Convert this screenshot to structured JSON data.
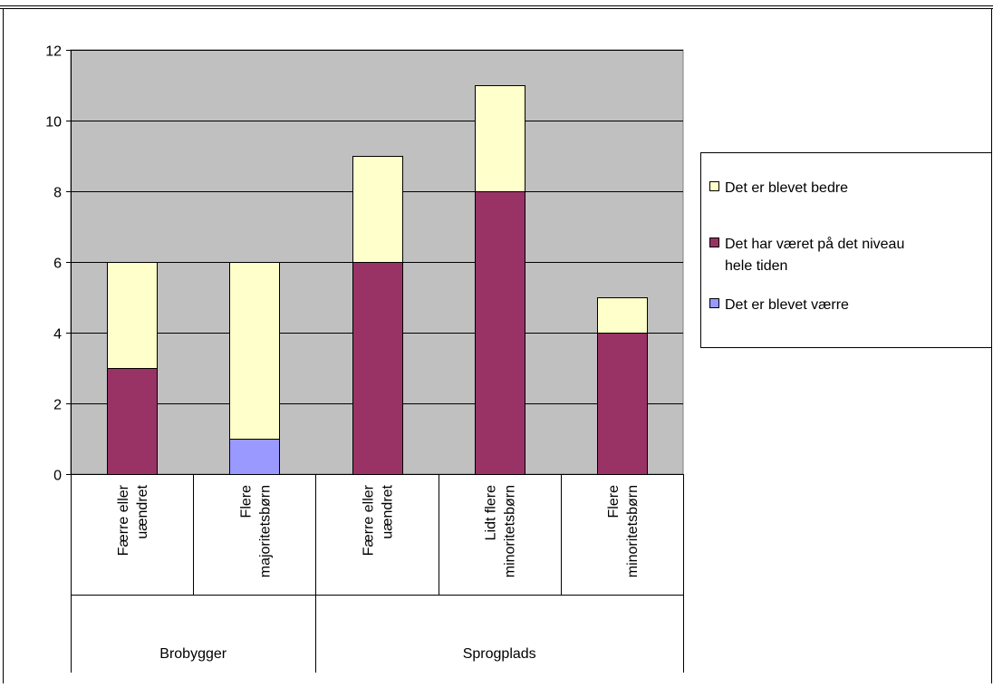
{
  "chart_data": {
    "type": "bar",
    "stacked": true,
    "groups": [
      {
        "label": "Brobygger",
        "categories": [
          [
            "Færre eller",
            "uændret"
          ],
          [
            "Flere",
            "majoritetsbørn"
          ]
        ]
      },
      {
        "label": "Sprogplads",
        "categories": [
          [
            "Færre eller",
            "uændret"
          ],
          [
            "Lidt flere",
            "minoritetsbørn"
          ],
          [
            "Flere",
            "minoritetsbørn"
          ]
        ]
      }
    ],
    "series": [
      {
        "name": "Det er blevet værre",
        "color": "#9999ff",
        "values": [
          0,
          1,
          0,
          0,
          0
        ]
      },
      {
        "name": "Det har været på det niveau hele tiden",
        "name_lines": [
          "Det har været på det niveau",
          "hele tiden"
        ],
        "color": "#993366",
        "values": [
          3,
          0,
          6,
          8,
          4
        ]
      },
      {
        "name": "Det er blevet bedre",
        "color": "#ffffcc",
        "values": [
          3,
          5,
          3,
          3,
          1
        ]
      }
    ],
    "legend_order": [
      2,
      1,
      0
    ],
    "ylim": [
      0,
      12
    ],
    "yticks": [
      0,
      2,
      4,
      6,
      8,
      10,
      12
    ],
    "grid": true,
    "legend_position": "right",
    "plot_background": "#c0c0c0"
  }
}
